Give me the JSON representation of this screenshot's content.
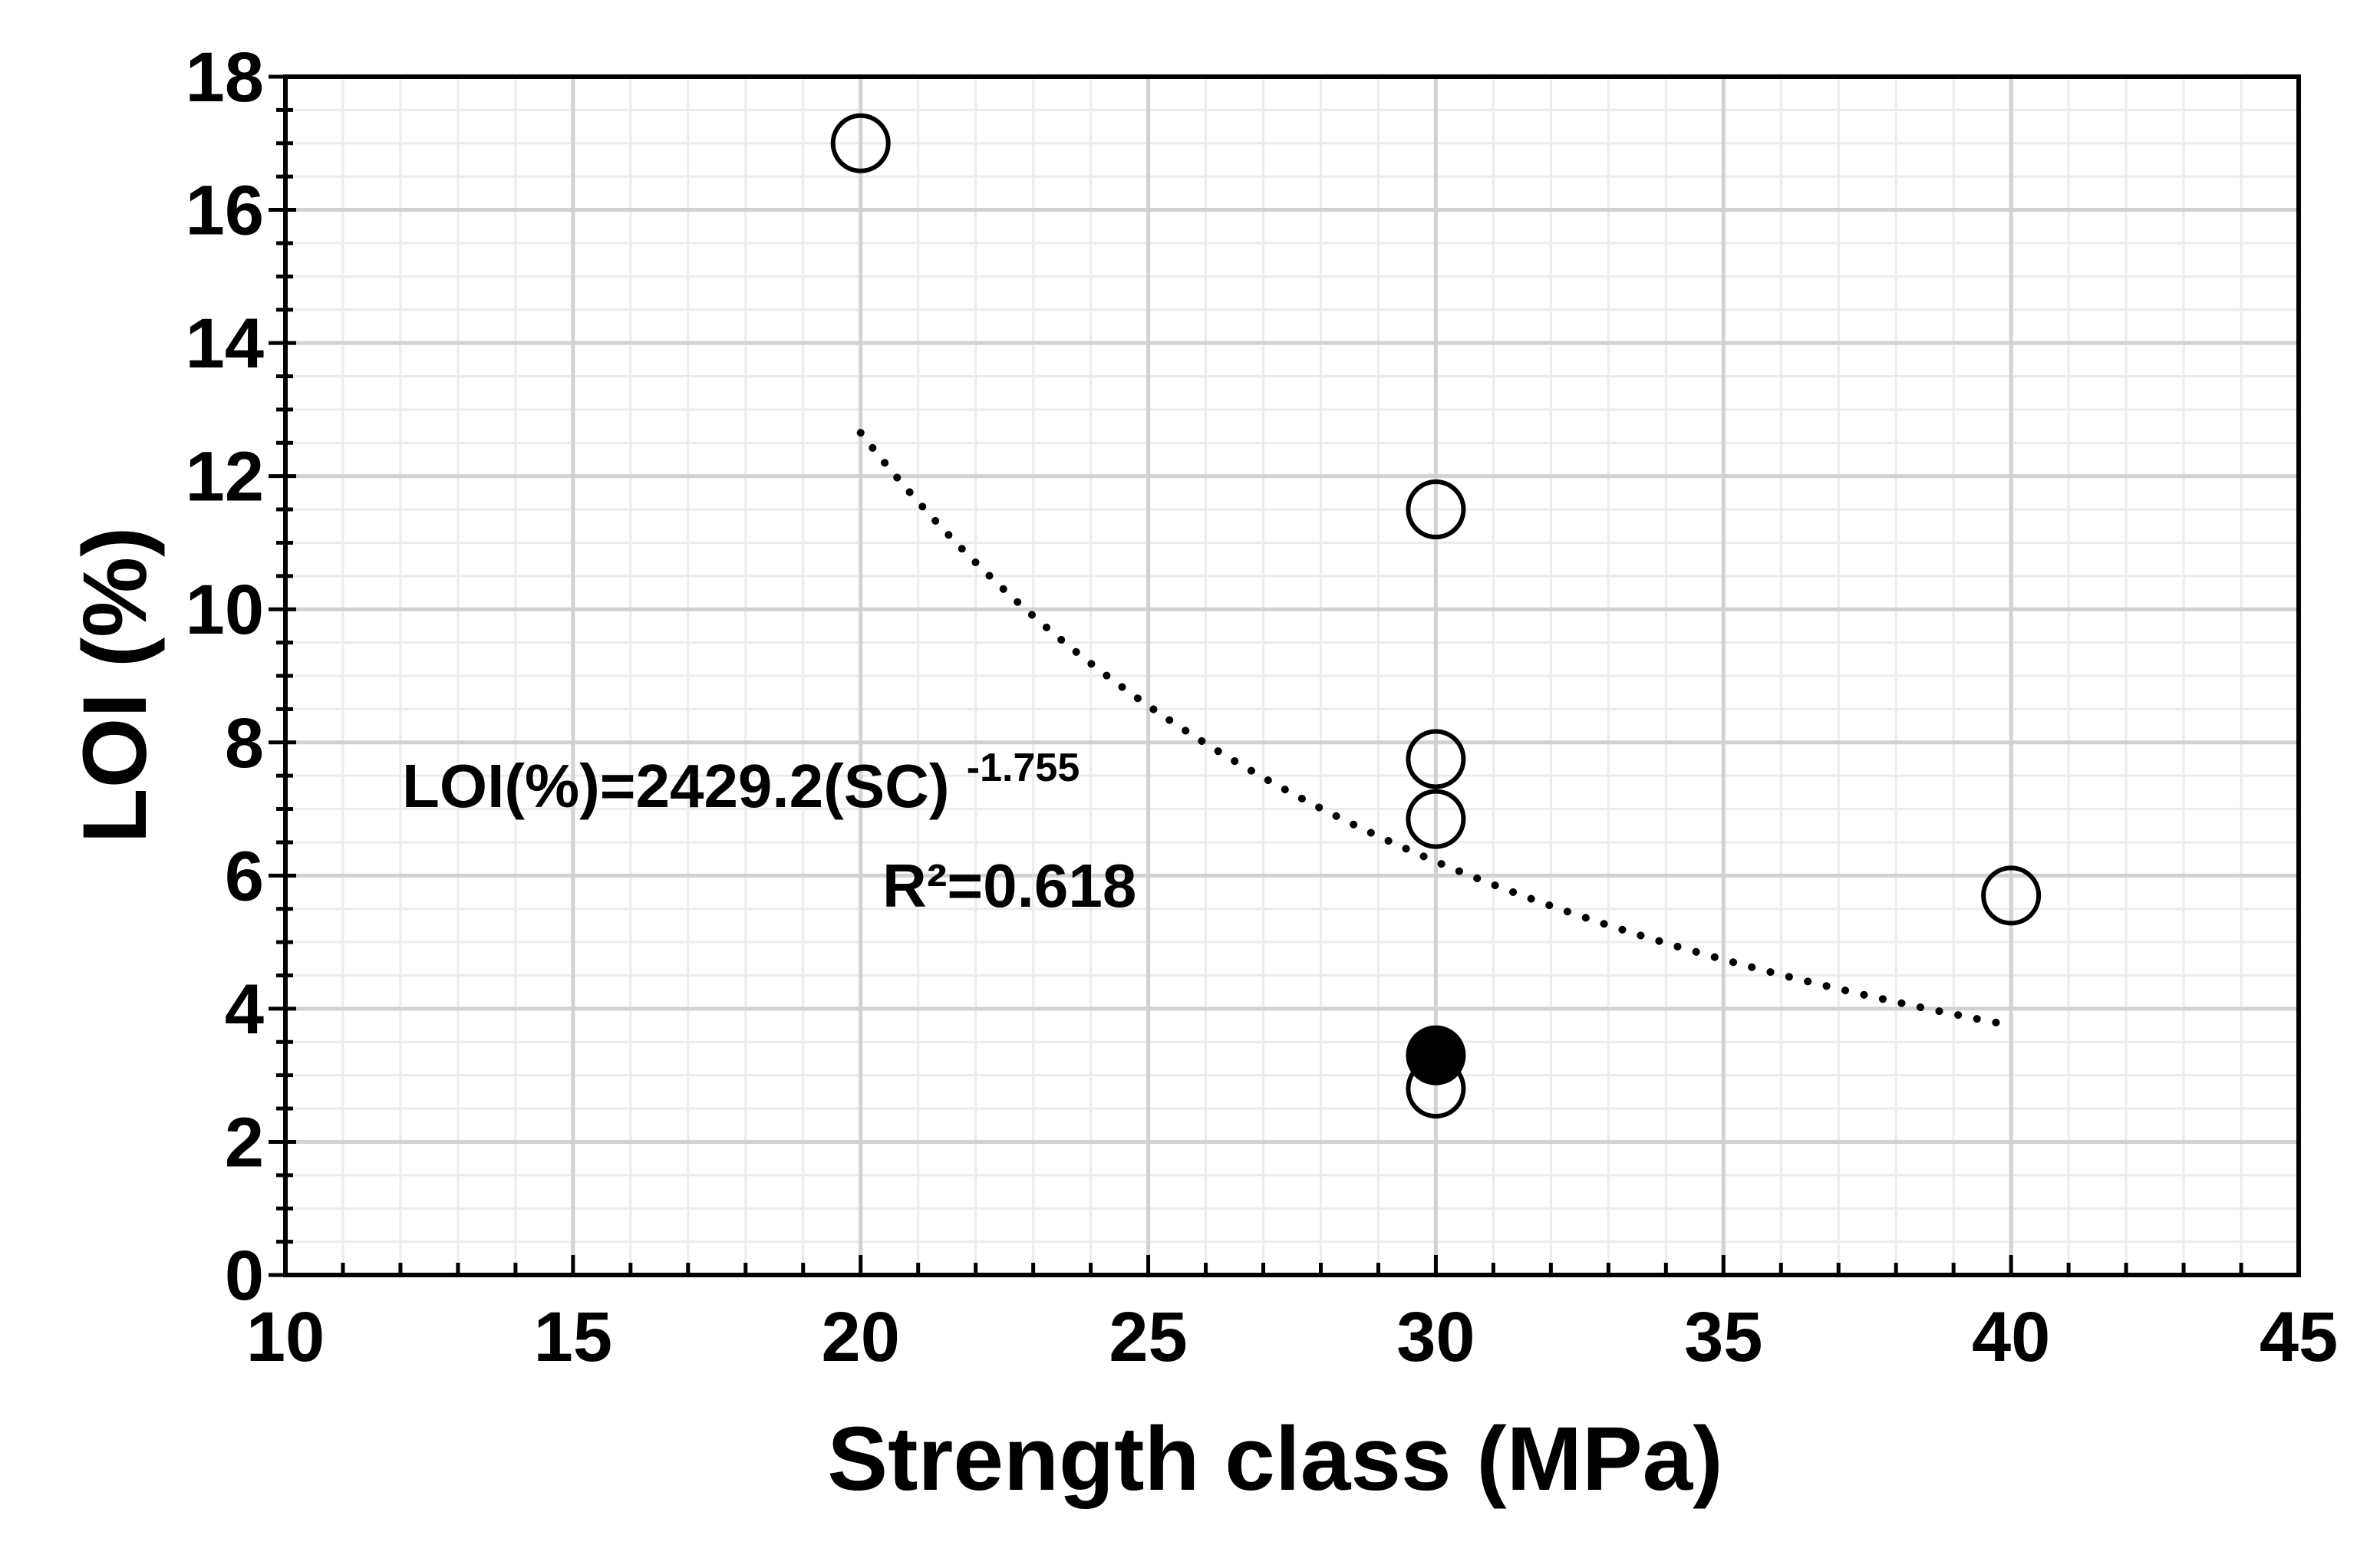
{
  "chart_data": {
    "type": "scatter",
    "title": "",
    "xlabel": "Strength class (MPa)",
    "ylabel": "LOI (%)",
    "xlim": [
      10,
      45
    ],
    "ylim": [
      0,
      18
    ],
    "x_ticks": [
      10,
      15,
      20,
      25,
      30,
      35,
      40,
      45
    ],
    "y_ticks": [
      0,
      2,
      4,
      6,
      8,
      10,
      12,
      14,
      16,
      18
    ],
    "grid": true,
    "series": [
      {
        "marker": "open-circle",
        "points": [
          {
            "x": 20,
            "y": 17.0
          },
          {
            "x": 30,
            "y": 11.5
          },
          {
            "x": 30,
            "y": 7.75
          },
          {
            "x": 30,
            "y": 6.85
          },
          {
            "x": 30,
            "y": 2.8
          },
          {
            "x": 40,
            "y": 5.7
          }
        ]
      },
      {
        "marker": "filled-circle",
        "points": [
          {
            "x": 30,
            "y": 3.3
          }
        ]
      }
    ],
    "trendline": {
      "style": "dotted",
      "form": "power",
      "coefficient": 2429.2,
      "exponent": -1.755,
      "x_range": [
        20,
        40
      ]
    },
    "annotations": {
      "equation_base": "LOI(%)=2429.2(SC)",
      "equation_exponent": "-1.755",
      "r_squared": "R²=0.618"
    }
  }
}
